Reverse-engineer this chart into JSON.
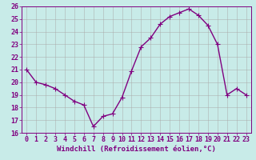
{
  "x": [
    0,
    1,
    2,
    3,
    4,
    5,
    6,
    7,
    8,
    9,
    10,
    11,
    12,
    13,
    14,
    15,
    16,
    17,
    18,
    19,
    20,
    21,
    22,
    23
  ],
  "y": [
    21.0,
    20.0,
    19.8,
    19.5,
    19.0,
    18.5,
    18.2,
    16.5,
    17.3,
    17.5,
    18.8,
    20.9,
    22.8,
    23.5,
    24.6,
    25.2,
    25.5,
    25.8,
    25.3,
    24.5,
    23.0,
    19.0,
    19.5,
    19.0
  ],
  "line_color": "#800080",
  "marker_color": "#800080",
  "bg_color": "#C8EBE8",
  "grid_color": "#aaaaaa",
  "xlabel": "Windchill (Refroidissement éolien,°C)",
  "xlabel_color": "#800080",
  "tick_color": "#800080",
  "spine_color": "#800080",
  "ylim": [
    16,
    26
  ],
  "xlim": [
    -0.5,
    23.5
  ],
  "yticks": [
    16,
    17,
    18,
    19,
    20,
    21,
    22,
    23,
    24,
    25,
    26
  ],
  "xticks": [
    0,
    1,
    2,
    3,
    4,
    5,
    6,
    7,
    8,
    9,
    10,
    11,
    12,
    13,
    14,
    15,
    16,
    17,
    18,
    19,
    20,
    21,
    22,
    23
  ],
  "xlabel_fontsize": 6.5,
  "tick_fontsize": 6.0,
  "line_width": 1.0,
  "marker_size": 2.5
}
